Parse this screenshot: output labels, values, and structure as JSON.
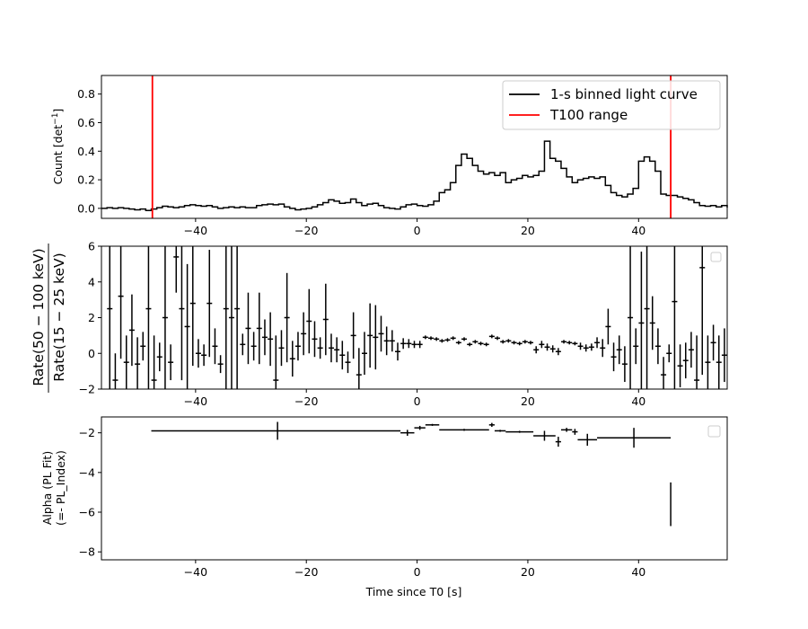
{
  "chart_data": [
    {
      "type": "line",
      "xlim": [
        -57,
        56
      ],
      "ylim": [
        -0.07,
        0.93
      ],
      "xticks": [
        -40,
        -20,
        0,
        20,
        40
      ],
      "yticks": [
        0.0,
        0.2,
        0.4,
        0.6,
        0.8
      ],
      "xtick_labels": [
        "−40",
        "−20",
        "0",
        "20",
        "40"
      ],
      "ytick_labels": [
        "0.0",
        "0.2",
        "0.4",
        "0.6",
        "0.8"
      ],
      "ylabel": "Count [det",
      "ylabel_sup": "−1",
      "ylabel_end": "]",
      "legend": {
        "placement": "top-right",
        "entries": [
          {
            "label": "1-s binned light curve",
            "color": "#000000"
          },
          {
            "label": "T100 range",
            "color": "#ff0000"
          }
        ]
      },
      "series": [
        {
          "name": "1-s binned light curve",
          "step": true,
          "x_start": -57,
          "x_step": 1,
          "values": [
            0.0,
            0.005,
            0.0,
            0.005,
            0.0,
            -0.005,
            -0.01,
            -0.005,
            -0.015,
            -0.005,
            0.005,
            0.015,
            0.01,
            0.005,
            0.01,
            0.02,
            0.025,
            0.02,
            0.015,
            0.02,
            0.01,
            0.0,
            0.005,
            0.01,
            0.005,
            0.01,
            0.005,
            0.005,
            0.02,
            0.025,
            0.03,
            0.025,
            0.03,
            0.01,
            0.0,
            -0.01,
            -0.005,
            0.0,
            0.01,
            0.025,
            0.04,
            0.06,
            0.05,
            0.035,
            0.04,
            0.065,
            0.04,
            0.02,
            0.03,
            0.035,
            0.02,
            0.005,
            0.0,
            -0.005,
            0.01,
            0.025,
            0.03,
            0.02,
            0.015,
            0.025,
            0.05,
            0.11,
            0.13,
            0.18,
            0.3,
            0.38,
            0.35,
            0.3,
            0.26,
            0.24,
            0.25,
            0.23,
            0.25,
            0.18,
            0.2,
            0.21,
            0.23,
            0.22,
            0.23,
            0.26,
            0.47,
            0.35,
            0.33,
            0.28,
            0.22,
            0.18,
            0.2,
            0.21,
            0.22,
            0.21,
            0.22,
            0.16,
            0.11,
            0.09,
            0.08,
            0.1,
            0.14,
            0.33,
            0.36,
            0.33,
            0.26,
            0.1,
            0.09,
            0.09,
            0.08,
            0.07,
            0.06,
            0.04,
            0.02,
            0.015,
            0.02,
            0.01,
            0.02,
            0.015,
            0.005
          ]
        }
      ],
      "vlines": [
        -47.8,
        45.8
      ]
    },
    {
      "type": "scatter",
      "xlim": [
        -57,
        56
      ],
      "ylim": [
        -2,
        6
      ],
      "xticks": [
        -40,
        -20,
        0,
        20,
        40
      ],
      "yticks": [
        -2,
        0,
        2,
        4,
        6
      ],
      "xtick_labels": [
        "−40",
        "−20",
        "0",
        "20",
        "40"
      ],
      "ytick_labels": [
        "−2",
        "0",
        "2",
        "4",
        "6"
      ],
      "ylabel_numerator": "Rate(50 − 100 keV)",
      "ylabel_denominator": "Rate(15 − 25 keV)",
      "legend": {
        "placement": "top-right",
        "entries": []
      },
      "points": [
        {
          "x": -55.5,
          "y": 2.5,
          "err": 6.0
        },
        {
          "x": -54.5,
          "y": -1.5,
          "err": 1.5
        },
        {
          "x": -53.5,
          "y": 3.2,
          "err": 3.5
        },
        {
          "x": -52.5,
          "y": -0.5,
          "err": 1.5
        },
        {
          "x": -51.5,
          "y": 1.3,
          "err": 2.0
        },
        {
          "x": -50.5,
          "y": -0.6,
          "err": 1.5
        },
        {
          "x": -49.5,
          "y": 0.4,
          "err": 0.8
        },
        {
          "x": -48.5,
          "y": 2.5,
          "err": 5.0
        },
        {
          "x": -47.5,
          "y": -1.5,
          "err": 2.5
        },
        {
          "x": -46.5,
          "y": -0.2,
          "err": 0.8
        },
        {
          "x": -45.5,
          "y": 2.0,
          "err": 4.0
        },
        {
          "x": -44.5,
          "y": -0.5,
          "err": 1.0
        },
        {
          "x": -43.5,
          "y": 5.4,
          "err": 2.0
        },
        {
          "x": -42.5,
          "y": 2.5,
          "err": 4.0
        },
        {
          "x": -41.5,
          "y": 1.5,
          "err": 3.5
        },
        {
          "x": -40.5,
          "y": 2.8,
          "err": 3.5
        },
        {
          "x": -39.5,
          "y": 0.0,
          "err": 0.8
        },
        {
          "x": -38.5,
          "y": -0.1,
          "err": 0.6
        },
        {
          "x": -37.5,
          "y": 2.8,
          "err": 3.0
        },
        {
          "x": -36.5,
          "y": 0.4,
          "err": 1.0
        },
        {
          "x": -35.5,
          "y": -0.6,
          "err": 0.5
        },
        {
          "x": -34.5,
          "y": 2.5,
          "err": 5.0
        },
        {
          "x": -33.5,
          "y": 2.0,
          "err": 5.0
        },
        {
          "x": -32.5,
          "y": 2.5,
          "err": 6.0
        },
        {
          "x": -31.5,
          "y": 0.5,
          "err": 0.6
        },
        {
          "x": -30.5,
          "y": 1.4,
          "err": 2.0
        },
        {
          "x": -29.5,
          "y": 0.4,
          "err": 0.8
        },
        {
          "x": -28.5,
          "y": 1.4,
          "err": 2.0
        },
        {
          "x": -27.5,
          "y": 0.9,
          "err": 1.0
        },
        {
          "x": -26.5,
          "y": 0.8,
          "err": 1.5
        },
        {
          "x": -25.5,
          "y": -1.5,
          "err": 2.5
        },
        {
          "x": -24.5,
          "y": 0.3,
          "err": 1.0
        },
        {
          "x": -23.5,
          "y": 2.0,
          "err": 2.5
        },
        {
          "x": -22.5,
          "y": -0.3,
          "err": 1.0
        },
        {
          "x": -21.5,
          "y": 0.4,
          "err": 0.8
        },
        {
          "x": -20.5,
          "y": 1.1,
          "err": 1.2
        },
        {
          "x": -19.5,
          "y": 1.8,
          "err": 1.8
        },
        {
          "x": -18.5,
          "y": 0.8,
          "err": 1.0
        },
        {
          "x": -17.5,
          "y": 0.3,
          "err": 0.6
        },
        {
          "x": -16.5,
          "y": 1.9,
          "err": 2.0
        },
        {
          "x": -15.5,
          "y": 0.3,
          "err": 0.8
        },
        {
          "x": -14.5,
          "y": 0.2,
          "err": 0.7
        },
        {
          "x": -13.5,
          "y": -0.1,
          "err": 0.8
        },
        {
          "x": -12.5,
          "y": -0.5,
          "err": 0.6
        },
        {
          "x": -11.5,
          "y": 1.0,
          "err": 1.3
        },
        {
          "x": -10.5,
          "y": -1.2,
          "err": 1.5
        },
        {
          "x": -9.5,
          "y": 0.0,
          "err": 1.2
        },
        {
          "x": -8.5,
          "y": 1.0,
          "err": 1.8
        },
        {
          "x": -7.5,
          "y": 0.9,
          "err": 1.8
        },
        {
          "x": -6.5,
          "y": 1.1,
          "err": 1.0
        },
        {
          "x": -5.5,
          "y": 0.7,
          "err": 0.8
        },
        {
          "x": -4.5,
          "y": 0.7,
          "err": 0.6
        },
        {
          "x": -3.5,
          "y": 0.1,
          "err": 0.5
        },
        {
          "x": -2.5,
          "y": 0.55,
          "err": 0.3
        },
        {
          "x": -1.5,
          "y": 0.55,
          "err": 0.25
        },
        {
          "x": -0.5,
          "y": 0.5,
          "err": 0.2
        },
        {
          "x": 0.5,
          "y": 0.5,
          "err": 0.2
        },
        {
          "x": 1.5,
          "y": 0.9,
          "err": 0.1
        },
        {
          "x": 2.5,
          "y": 0.85,
          "err": 0.1
        },
        {
          "x": 3.5,
          "y": 0.8,
          "err": 0.1
        },
        {
          "x": 4.5,
          "y": 0.7,
          "err": 0.1
        },
        {
          "x": 5.5,
          "y": 0.75,
          "err": 0.1
        },
        {
          "x": 6.5,
          "y": 0.85,
          "err": 0.1
        },
        {
          "x": 7.5,
          "y": 0.6,
          "err": 0.1
        },
        {
          "x": 8.5,
          "y": 0.8,
          "err": 0.1
        },
        {
          "x": 9.5,
          "y": 0.5,
          "err": 0.1
        },
        {
          "x": 10.5,
          "y": 0.65,
          "err": 0.1
        },
        {
          "x": 11.5,
          "y": 0.55,
          "err": 0.1
        },
        {
          "x": 12.5,
          "y": 0.5,
          "err": 0.1
        },
        {
          "x": 13.5,
          "y": 0.95,
          "err": 0.1
        },
        {
          "x": 14.5,
          "y": 0.85,
          "err": 0.1
        },
        {
          "x": 15.5,
          "y": 0.65,
          "err": 0.1
        },
        {
          "x": 16.5,
          "y": 0.7,
          "err": 0.1
        },
        {
          "x": 17.5,
          "y": 0.6,
          "err": 0.1
        },
        {
          "x": 18.5,
          "y": 0.55,
          "err": 0.1
        },
        {
          "x": 19.5,
          "y": 0.65,
          "err": 0.1
        },
        {
          "x": 20.5,
          "y": 0.6,
          "err": 0.1
        },
        {
          "x": 21.5,
          "y": 0.2,
          "err": 0.2
        },
        {
          "x": 22.5,
          "y": 0.5,
          "err": 0.2
        },
        {
          "x": 23.5,
          "y": 0.35,
          "err": 0.2
        },
        {
          "x": 24.5,
          "y": 0.25,
          "err": 0.2
        },
        {
          "x": 25.5,
          "y": 0.1,
          "err": 0.2
        },
        {
          "x": 26.5,
          "y": 0.65,
          "err": 0.1
        },
        {
          "x": 27.5,
          "y": 0.6,
          "err": 0.1
        },
        {
          "x": 28.5,
          "y": 0.55,
          "err": 0.1
        },
        {
          "x": 29.5,
          "y": 0.4,
          "err": 0.2
        },
        {
          "x": 30.5,
          "y": 0.3,
          "err": 0.2
        },
        {
          "x": 31.5,
          "y": 0.35,
          "err": 0.2
        },
        {
          "x": 32.5,
          "y": 0.6,
          "err": 0.3
        },
        {
          "x": 33.5,
          "y": 0.3,
          "err": 0.5
        },
        {
          "x": 34.5,
          "y": 1.5,
          "err": 1.0
        },
        {
          "x": 35.5,
          "y": -0.2,
          "err": 0.8
        },
        {
          "x": 36.5,
          "y": 0.2,
          "err": 0.8
        },
        {
          "x": 37.5,
          "y": -0.6,
          "err": 1.0
        },
        {
          "x": 38.5,
          "y": 2.0,
          "err": 4.0
        },
        {
          "x": 39.5,
          "y": 0.4,
          "err": 1.0
        },
        {
          "x": 40.5,
          "y": 1.7,
          "err": 4.0
        },
        {
          "x": 41.5,
          "y": 2.5,
          "err": 5.0
        },
        {
          "x": 42.5,
          "y": 1.7,
          "err": 1.5
        },
        {
          "x": 43.5,
          "y": 0.4,
          "err": 1.0
        },
        {
          "x": 44.5,
          "y": -1.2,
          "err": 1.0
        },
        {
          "x": 45.5,
          "y": 0.0,
          "err": 0.5
        },
        {
          "x": 46.5,
          "y": 2.9,
          "err": 5.0
        },
        {
          "x": 47.5,
          "y": -0.7,
          "err": 1.2
        },
        {
          "x": 48.5,
          "y": -0.4,
          "err": 1.0
        },
        {
          "x": 49.5,
          "y": 0.2,
          "err": 1.0
        },
        {
          "x": 50.5,
          "y": -1.5,
          "err": 2.5
        },
        {
          "x": 51.5,
          "y": 4.8,
          "err": 6.0
        },
        {
          "x": 52.5,
          "y": -0.5,
          "err": 1.5
        },
        {
          "x": 53.5,
          "y": 0.6,
          "err": 1.0
        },
        {
          "x": 54.5,
          "y": -0.5,
          "err": 1.5
        },
        {
          "x": 55.5,
          "y": -0.1,
          "err": 1.5
        }
      ]
    },
    {
      "type": "scatter",
      "xlim": [
        -57,
        56
      ],
      "ylim": [
        -8.4,
        -1.2
      ],
      "xticks": [
        -40,
        -20,
        0,
        20,
        40
      ],
      "yticks": [
        -2,
        -4,
        -6,
        -8
      ],
      "xtick_labels": [
        "−40",
        "−20",
        "0",
        "20",
        "40"
      ],
      "ytick_labels": [
        "−2",
        "−4",
        "−6",
        "−8"
      ],
      "xlabel": "Time since T0 [s]",
      "ylabel_line1": "Alpha (PL Fit)",
      "ylabel_line2": "(=- PL_Index)",
      "legend": {
        "placement": "top-right",
        "entries": []
      },
      "points": [
        {
          "x0": -48,
          "x1": -3,
          "y": -1.9,
          "yerr": 0.0
        },
        {
          "x0": -25.2,
          "x1": -25.2,
          "y": -1.9,
          "yerr": 0.45
        },
        {
          "x0": -3,
          "x1": -0.5,
          "y": -2.0,
          "yerr": 0.15
        },
        {
          "x0": -0.5,
          "x1": 1.5,
          "y": -1.75,
          "yerr": 0.1
        },
        {
          "x0": 1.5,
          "x1": 4,
          "y": -1.6,
          "yerr": 0.05
        },
        {
          "x0": 4,
          "x1": 13,
          "y": -1.85,
          "yerr": 0.05
        },
        {
          "x0": 13,
          "x1": 14,
          "y": -1.6,
          "yerr": 0.1
        },
        {
          "x0": 14,
          "x1": 16,
          "y": -1.9,
          "yerr": 0.05
        },
        {
          "x0": 16,
          "x1": 21,
          "y": -1.95,
          "yerr": 0.05
        },
        {
          "x0": 21,
          "x1": 25,
          "y": -2.15,
          "yerr": 0.25
        },
        {
          "x0": 25,
          "x1": 26,
          "y": -2.45,
          "yerr": 0.25
        },
        {
          "x0": 26,
          "x1": 28,
          "y": -1.85,
          "yerr": 0.1
        },
        {
          "x0": 28,
          "x1": 29,
          "y": -1.95,
          "yerr": 0.15
        },
        {
          "x0": 29,
          "x1": 32.5,
          "y": -2.35,
          "yerr": 0.3
        },
        {
          "x0": 32.5,
          "x1": 45.8,
          "y": -2.25,
          "yerr": 0.5
        },
        {
          "x0": 45.8,
          "x1": 45.8,
          "y": -5.6,
          "yerr": 1.1
        }
      ]
    }
  ]
}
